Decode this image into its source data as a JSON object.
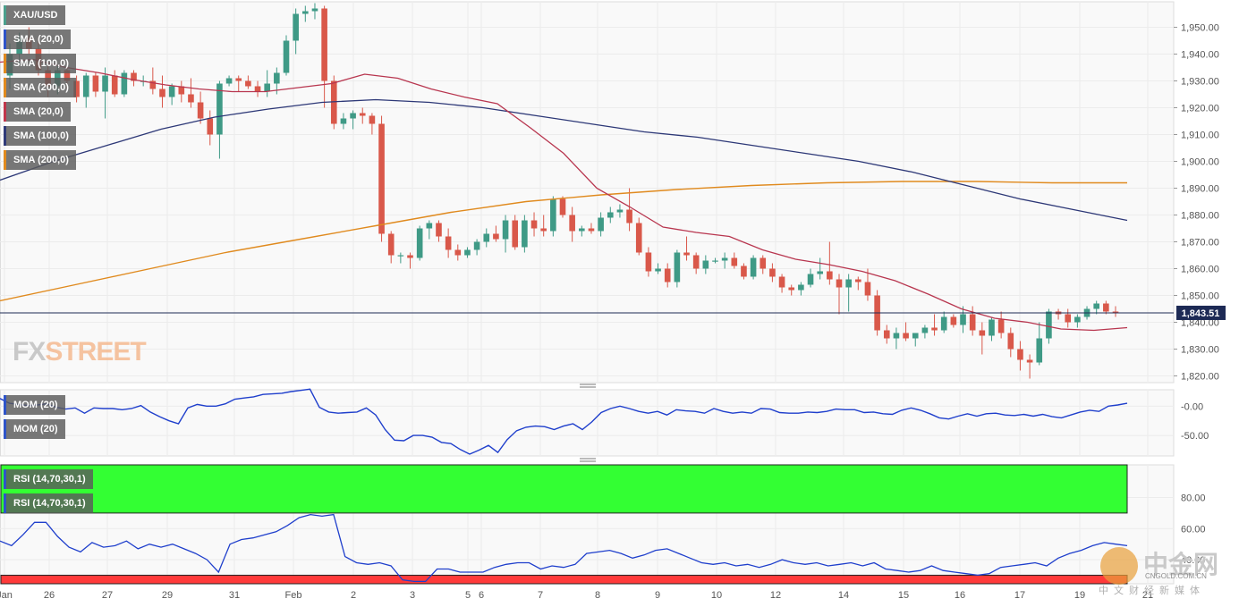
{
  "symbol": "XAU/USD",
  "price_label": "1,843.51",
  "watermark": {
    "fx": "FX",
    "street": "STREET"
  },
  "source_logo": {
    "name": "中金网",
    "domain": "CNGOLD.COM.CN",
    "tagline": "中文财经新媒体"
  },
  "legend": {
    "main": [
      {
        "label": "XAU/USD",
        "color": "#4a9f8c"
      },
      {
        "label": "SMA (20,0)",
        "color": "#2e54c8"
      },
      {
        "label": "SMA (100,0)",
        "color": "#e08a1e"
      },
      {
        "label": "SMA (200,0)",
        "color": "#e08a1e"
      },
      {
        "label": "SMA (20,0)",
        "color": "#c0364a"
      },
      {
        "label": "SMA (100,0)",
        "color": "#2f3a78"
      },
      {
        "label": "SMA (200,0)",
        "color": "#e08a1e"
      }
    ],
    "mom": [
      {
        "label": "MOM (20)",
        "color": "#2e54c8"
      },
      {
        "label": "MOM (20)",
        "color": "#2e54c8"
      }
    ],
    "rsi": [
      {
        "label": "RSI (14,70,30,1)",
        "color": "#2e54c8"
      },
      {
        "label": "RSI (14,70,30,1)",
        "color": "#2e54c8"
      }
    ]
  },
  "colors": {
    "up": "#3f9a86",
    "down": "#d9584a",
    "sma20": "#b8364f",
    "sma100": "#2d3877",
    "sma200": "#e08a1e",
    "indicator": "#1f3fcc",
    "rsi_overbought": "#33ff33",
    "rsi_oversold": "#ff3a3a"
  },
  "chart_data": [
    {
      "type": "candlestick",
      "title": "XAU/USD",
      "timeframe": "4H",
      "x_tick_labels": [
        "Jan",
        "26",
        "27",
        "29",
        "31",
        "Feb",
        "2",
        "3",
        "5",
        "6",
        "7",
        "8",
        "9",
        "10",
        "12",
        "14",
        "15",
        "16",
        "17",
        "19",
        "21"
      ],
      "y_ticks": [
        1820,
        1830,
        1840,
        1850,
        1860,
        1870,
        1880,
        1890,
        1900,
        1910,
        1920,
        1930,
        1940,
        1950
      ],
      "y_tick_labels": [
        "1,820.00",
        "1,830.00",
        "1,840.00",
        "1,850.00",
        "1,860.00",
        "1,870.00",
        "1,880.00",
        "1,890.00",
        "1,900.00",
        "1,910.00",
        "1,920.00",
        "1,930.00",
        "1,940.00",
        "1,950.00"
      ],
      "ylim": [
        1817.5,
        1959.5
      ],
      "last_price": 1843.51,
      "candles": [
        [
          1932,
          1944,
          1927,
          1940
        ],
        [
          1940,
          1948,
          1936,
          1946
        ],
        [
          1946,
          1950,
          1940,
          1942
        ],
        [
          1942,
          1946,
          1932,
          1934
        ],
        [
          1934,
          1938,
          1924,
          1928
        ],
        [
          1928,
          1936,
          1925,
          1934
        ],
        [
          1934,
          1936,
          1927,
          1930
        ],
        [
          1930,
          1932,
          1922,
          1924
        ],
        [
          1924,
          1933,
          1920,
          1932
        ],
        [
          1932,
          1933,
          1924,
          1926
        ],
        [
          1926,
          1935,
          1916,
          1932
        ],
        [
          1932,
          1934,
          1924,
          1925
        ],
        [
          1925,
          1934,
          1924,
          1933
        ],
        [
          1933,
          1934,
          1928,
          1930
        ],
        [
          1930,
          1932,
          1928,
          1930
        ],
        [
          1930,
          1935,
          1925,
          1927
        ],
        [
          1927,
          1932,
          1920,
          1924
        ],
        [
          1924,
          1929,
          1921,
          1928
        ],
        [
          1928,
          1930,
          1922,
          1925
        ],
        [
          1925,
          1931,
          1920,
          1922
        ],
        [
          1922,
          1926,
          1914,
          1916
        ],
        [
          1916,
          1919,
          1906,
          1910
        ],
        [
          1910,
          1930,
          1901,
          1929
        ],
        [
          1929,
          1932,
          1928,
          1931
        ],
        [
          1931,
          1932,
          1926,
          1930
        ],
        [
          1930,
          1932,
          1927,
          1928
        ],
        [
          1928,
          1930,
          1924,
          1926
        ],
        [
          1926,
          1934,
          1924,
          1929
        ],
        [
          1929,
          1935,
          1925,
          1933
        ],
        [
          1933,
          1947,
          1932,
          1945
        ],
        [
          1945,
          1957,
          1940,
          1955
        ],
        [
          1955,
          1958,
          1952,
          1956
        ],
        [
          1956,
          1959,
          1953,
          1957
        ],
        [
          1957,
          1958,
          1920,
          1930
        ],
        [
          1930,
          1932,
          1912,
          1914
        ],
        [
          1914,
          1918,
          1912,
          1916
        ],
        [
          1916,
          1919,
          1912,
          1918
        ],
        [
          1918,
          1920,
          1914,
          1917
        ],
        [
          1917,
          1918,
          1910,
          1914
        ],
        [
          1914,
          1917,
          1870,
          1873
        ],
        [
          1873,
          1874,
          1862,
          1865
        ],
        [
          1865,
          1866,
          1862,
          1865
        ],
        [
          1865,
          1866,
          1860,
          1864
        ],
        [
          1864,
          1876,
          1863,
          1875
        ],
        [
          1875,
          1878,
          1871,
          1877
        ],
        [
          1877,
          1878,
          1870,
          1872
        ],
        [
          1872,
          1875,
          1864,
          1867
        ],
        [
          1867,
          1869,
          1863,
          1865
        ],
        [
          1865,
          1868,
          1864,
          1867
        ],
        [
          1867,
          1871,
          1865,
          1870
        ],
        [
          1870,
          1875,
          1868,
          1873
        ],
        [
          1873,
          1876,
          1870,
          1871
        ],
        [
          1871,
          1880,
          1866,
          1878
        ],
        [
          1878,
          1880,
          1867,
          1868
        ],
        [
          1868,
          1880,
          1866,
          1878
        ],
        [
          1878,
          1881,
          1872,
          1875
        ],
        [
          1875,
          1880,
          1872,
          1874
        ],
        [
          1874,
          1887,
          1872,
          1886
        ],
        [
          1886,
          1887,
          1879,
          1880
        ],
        [
          1880,
          1883,
          1870,
          1874
        ],
        [
          1874,
          1876,
          1872,
          1875
        ],
        [
          1875,
          1877,
          1873,
          1874
        ],
        [
          1874,
          1881,
          1872,
          1879
        ],
        [
          1879,
          1883,
          1877,
          1881
        ],
        [
          1881,
          1884,
          1879,
          1882
        ],
        [
          1882,
          1890,
          1874,
          1877
        ],
        [
          1877,
          1879,
          1865,
          1866
        ],
        [
          1866,
          1868,
          1857,
          1859
        ],
        [
          1859,
          1862,
          1858,
          1860
        ],
        [
          1860,
          1862,
          1853,
          1855
        ],
        [
          1855,
          1867,
          1853,
          1866
        ],
        [
          1866,
          1872,
          1863,
          1865
        ],
        [
          1865,
          1866,
          1858,
          1860
        ],
        [
          1860,
          1865,
          1858,
          1863
        ],
        [
          1863,
          1864,
          1862,
          1863
        ],
        [
          1863,
          1866,
          1860,
          1864
        ],
        [
          1864,
          1866,
          1860,
          1861
        ],
        [
          1861,
          1862,
          1856,
          1857
        ],
        [
          1857,
          1865,
          1856,
          1864
        ],
        [
          1864,
          1865,
          1858,
          1860
        ],
        [
          1860,
          1862,
          1855,
          1857
        ],
        [
          1857,
          1858,
          1851,
          1853
        ],
        [
          1853,
          1854,
          1850,
          1852
        ],
        [
          1852,
          1855,
          1850,
          1854
        ],
        [
          1854,
          1860,
          1853,
          1858
        ],
        [
          1858,
          1864,
          1856,
          1859
        ],
        [
          1859,
          1870,
          1854,
          1856
        ],
        [
          1856,
          1858,
          1843,
          1853
        ],
        [
          1853,
          1858,
          1844,
          1856
        ],
        [
          1856,
          1857,
          1852,
          1855
        ],
        [
          1855,
          1860,
          1848,
          1850
        ],
        [
          1850,
          1852,
          1835,
          1837
        ],
        [
          1837,
          1839,
          1832,
          1834
        ],
        [
          1834,
          1838,
          1830,
          1836
        ],
        [
          1836,
          1840,
          1833,
          1834
        ],
        [
          1834,
          1836,
          1831,
          1836
        ],
        [
          1836,
          1839,
          1834,
          1838
        ],
        [
          1838,
          1843,
          1835,
          1837
        ],
        [
          1837,
          1844,
          1836,
          1842
        ],
        [
          1842,
          1843,
          1838,
          1839
        ],
        [
          1839,
          1846,
          1836,
          1843
        ],
        [
          1843,
          1846,
          1835,
          1837
        ],
        [
          1837,
          1840,
          1828,
          1835
        ],
        [
          1835,
          1842,
          1833,
          1841
        ],
        [
          1841,
          1844,
          1834,
          1836
        ],
        [
          1836,
          1838,
          1827,
          1830
        ],
        [
          1830,
          1833,
          1822,
          1826
        ],
        [
          1826,
          1828,
          1819,
          1825
        ],
        [
          1825,
          1840,
          1824,
          1834
        ],
        [
          1834,
          1845,
          1832,
          1844
        ],
        [
          1844,
          1845,
          1841,
          1843
        ],
        [
          1843,
          1845,
          1838,
          1840
        ],
        [
          1840,
          1843,
          1838,
          1842
        ],
        [
          1842,
          1846,
          1841,
          1845
        ],
        [
          1845,
          1848,
          1843,
          1847
        ],
        [
          1847,
          1848,
          1843,
          1844
        ],
        [
          1844,
          1846,
          1842,
          1843.51
        ]
      ],
      "sma20": [
        1937,
        1938,
        1935,
        1933,
        1930.5,
        1928.5,
        1927,
        1926,
        1926,
        1927.5,
        1929,
        1932.5,
        1931,
        1927,
        1924,
        1921.5,
        1912.5,
        1903,
        1890,
        1883,
        1875.5,
        1873.5,
        1872,
        1867,
        1863.5,
        1861.5,
        1859,
        1855.5,
        1850.5,
        1845,
        1841.5,
        1840,
        1837.5,
        1837,
        1838
      ],
      "sma100": [
        1893,
        1900,
        1906,
        1912,
        1916.5,
        1919.5,
        1922,
        1923,
        1922,
        1920,
        1917,
        1914,
        1911,
        1909,
        1906,
        1903,
        1900,
        1896,
        1891,
        1886,
        1882,
        1878
      ],
      "sma200": [
        1848,
        1854,
        1860,
        1866,
        1871,
        1876,
        1881,
        1885,
        1887.5,
        1889.5,
        1891,
        1892,
        1892.5,
        1892.5,
        1892,
        1892
      ]
    },
    {
      "type": "line",
      "title": "MOM (20)",
      "y_ticks": [
        0,
        -50
      ],
      "y_tick_labels": [
        "-0.00",
        "-50.00"
      ],
      "ylim": [
        -85,
        28
      ],
      "series": [
        {
          "name": "MOM (20)",
          "values": [
            13,
            5,
            3,
            1,
            2,
            4,
            -2,
            -5,
            -3,
            -12,
            -3,
            -4,
            -4,
            -6,
            -4,
            1,
            -10,
            -18,
            -25,
            -30,
            -3,
            3,
            0,
            0,
            4,
            12,
            14,
            16,
            20,
            21,
            22,
            25,
            27,
            29,
            -2,
            -10,
            -12,
            -11,
            -10,
            -3,
            -15,
            -40,
            -58,
            -59,
            -50,
            -50,
            -53,
            -62,
            -64,
            -74,
            -82,
            -75,
            -67,
            -79,
            -57,
            -42,
            -36,
            -34,
            -35,
            -40,
            -34,
            -30,
            -40,
            -27,
            -11,
            -4,
            0,
            -4,
            -9,
            -12,
            -9,
            -15,
            -6,
            -8,
            -9,
            -12,
            -4,
            -9,
            -12,
            -10,
            -12,
            -4,
            -5,
            -11,
            -12,
            -12,
            -10,
            -11,
            -9,
            -5,
            -6,
            -6,
            -11,
            -10,
            -13,
            -14,
            -7,
            -3,
            -7,
            -13,
            -20,
            -22,
            -17,
            -13,
            -17,
            -13,
            -12,
            -15,
            -16,
            -14,
            -17,
            -14,
            -18,
            -20,
            -15,
            -10,
            -7,
            -9,
            0,
            2,
            5
          ]
        }
      ]
    },
    {
      "type": "line",
      "title": "RSI (14,70,30,1)",
      "y_ticks": [
        80,
        60,
        40
      ],
      "y_tick_labels": [
        "80.00",
        "60.00",
        "40.00"
      ],
      "ylim": [
        24.5,
        101
      ],
      "overbought": 70,
      "oversold": 30,
      "series": [
        {
          "name": "RSI (14,70,30,1)",
          "values": [
            52,
            49,
            56,
            64,
            64,
            55,
            48,
            45,
            51,
            48,
            49,
            52,
            47,
            50,
            48,
            50,
            47,
            44,
            40,
            32,
            50,
            53,
            54,
            56,
            58,
            62,
            67,
            69,
            68,
            69,
            42,
            38,
            37,
            38,
            36,
            27,
            26,
            26,
            34,
            34,
            32,
            32,
            32,
            35,
            37,
            38,
            38,
            34,
            36,
            35,
            37,
            44,
            45,
            46,
            44,
            41,
            43,
            46,
            47,
            44,
            41,
            38,
            37,
            38,
            36,
            37,
            35,
            37,
            40,
            38,
            37,
            38,
            36,
            37,
            38,
            36,
            38,
            34,
            33,
            32,
            33,
            36,
            33,
            32,
            31,
            30,
            31,
            35,
            36,
            37,
            38,
            36,
            41,
            44,
            46,
            49,
            51,
            50,
            49
          ]
        }
      ]
    }
  ]
}
